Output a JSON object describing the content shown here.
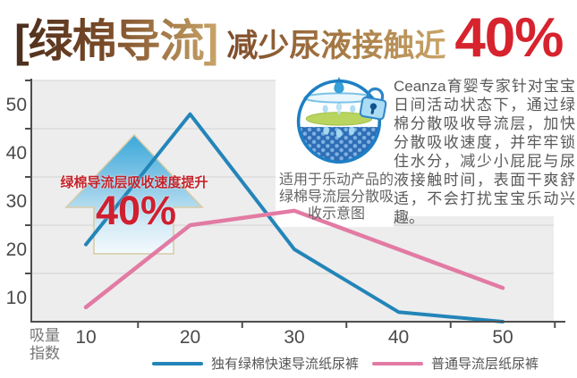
{
  "title": {
    "bracket": "[绿棉导流]",
    "rest": "减少尿液接触近",
    "percent": "40%"
  },
  "annotation": {
    "label": "绿棉导流层吸收速度提升",
    "value": "40%"
  },
  "diagram": {
    "caption": "适用于乐动产品的绿棉导流层分散吸收示意图",
    "icons": [
      "water-drop-icon",
      "water-surface",
      "green-cotton-layer",
      "absorbent-core-dots",
      "lock-icon"
    ]
  },
  "description": "Ceanza育婴专家针对宝宝日间活动状态下，通过绿棉分散吸收导流层，加快分散吸收速度，并牢牢锁住水分，减少小屁屁与尿液接触时间，表面干爽舒适，不会打扰宝宝乐动兴趣。",
  "chart_data": {
    "type": "line",
    "x": [
      10,
      20,
      30,
      40,
      50
    ],
    "series": [
      {
        "name": "独有绿棉快速导流纸尿裤",
        "color": "#2385b8",
        "values": [
          21,
          48,
          20,
          7,
          5
        ]
      },
      {
        "name": "普通导流层纸尿裤",
        "color": "#e27ba4",
        "values": [
          8,
          25,
          28,
          20,
          12
        ]
      }
    ],
    "ylabel": "吸量指数",
    "xlabel": "",
    "y_tick_labels": [
      50,
      40,
      30,
      20,
      10
    ],
    "x_tick_labels": [
      10,
      20,
      30,
      40,
      50
    ],
    "ylim": [
      5,
      55
    ],
    "xlim": [
      5,
      55
    ],
    "grid_y_values": [
      15,
      25,
      35,
      45,
      55
    ],
    "grid": true,
    "legend_position": "bottom",
    "plot_bg": "#ededed",
    "grid_color": "#d9d9d9",
    "axis_color": "#4d4d4d"
  },
  "colors": {
    "title_gradient_dark": "#4a2d1d",
    "title_gradient_gold": "#c9a468",
    "headline_red": "#d6232e",
    "annotation_red": "#cf2030",
    "arrow_blue_top": "#31a5da",
    "arrow_blue_bottom": "#f2fafd",
    "icon_outline_blue": "#1e7fc4",
    "icon_core_blue": "#2e6db5",
    "icon_green_layer": "#b9d55f"
  }
}
